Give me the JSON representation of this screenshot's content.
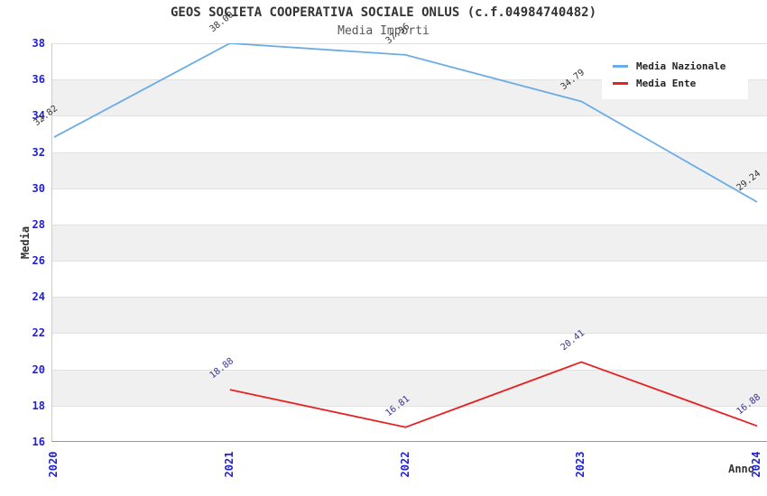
{
  "chart_data": {
    "type": "line",
    "title": "GEOS SOCIETA COOPERATIVA SOCIALE ONLUS (c.f.04984740482)",
    "subtitle": "Media Importi",
    "xlabel": "Anno",
    "ylabel": "Media",
    "x": [
      2020,
      2021,
      2022,
      2023,
      2024
    ],
    "ylim": [
      16,
      38
    ],
    "ytick_step": 2,
    "grid": "horizontal-bands",
    "legend_position": "top-right",
    "series": [
      {
        "name": "Media Nazionale",
        "color": "#6CACE4",
        "label_color": "#333333",
        "points": [
          {
            "x": 2020,
            "y": 32.82
          },
          {
            "x": 2021,
            "y": 38.0
          },
          {
            "x": 2022,
            "y": 37.36
          },
          {
            "x": 2023,
            "y": 34.79
          },
          {
            "x": 2024,
            "y": 29.24
          }
        ]
      },
      {
        "name": "Media Ente",
        "color": "#E62222",
        "label_color": "#333399",
        "points": [
          {
            "x": 2021,
            "y": 18.88
          },
          {
            "x": 2022,
            "y": 16.81
          },
          {
            "x": 2023,
            "y": 20.41
          },
          {
            "x": 2024,
            "y": 16.88
          }
        ]
      }
    ]
  },
  "colors": {
    "tick_label": "#2222CC",
    "axis_label": "#333333",
    "band_gray": "#F0F0F0",
    "band_white": "#FFFFFF",
    "gridline": "#E2E2E2",
    "axis_line": "#999999",
    "background": "#FFFFFF"
  }
}
